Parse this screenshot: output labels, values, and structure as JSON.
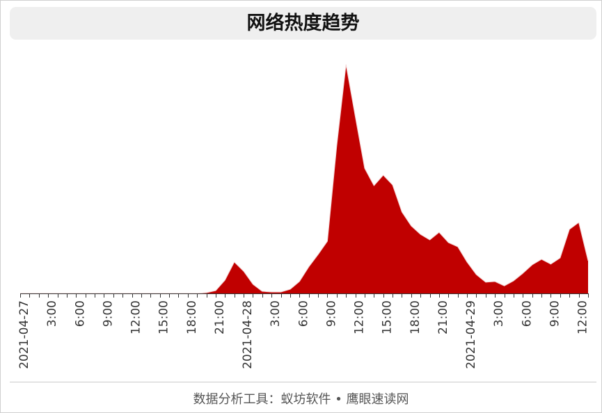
{
  "chart_data": {
    "type": "area",
    "title": "网络热度趋势",
    "x": [
      "2021-04-27 00:00",
      "2021-04-27 01:00",
      "2021-04-27 02:00",
      "2021-04-27 03:00",
      "2021-04-27 04:00",
      "2021-04-27 05:00",
      "2021-04-27 06:00",
      "2021-04-27 07:00",
      "2021-04-27 08:00",
      "2021-04-27 09:00",
      "2021-04-27 10:00",
      "2021-04-27 11:00",
      "2021-04-27 12:00",
      "2021-04-27 13:00",
      "2021-04-27 14:00",
      "2021-04-27 15:00",
      "2021-04-27 16:00",
      "2021-04-27 17:00",
      "2021-04-27 18:00",
      "2021-04-27 19:00",
      "2021-04-27 20:00",
      "2021-04-27 21:00",
      "2021-04-27 22:00",
      "2021-04-27 23:00",
      "2021-04-28 00:00",
      "2021-04-28 01:00",
      "2021-04-28 02:00",
      "2021-04-28 03:00",
      "2021-04-28 04:00",
      "2021-04-28 05:00",
      "2021-04-28 06:00",
      "2021-04-28 07:00",
      "2021-04-28 08:00",
      "2021-04-28 09:00",
      "2021-04-28 10:00",
      "2021-04-28 11:00",
      "2021-04-28 12:00",
      "2021-04-28 13:00",
      "2021-04-28 14:00",
      "2021-04-28 15:00",
      "2021-04-28 16:00",
      "2021-04-28 17:00",
      "2021-04-28 18:00",
      "2021-04-28 19:00",
      "2021-04-28 20:00",
      "2021-04-28 21:00",
      "2021-04-28 22:00",
      "2021-04-28 23:00",
      "2021-04-29 00:00",
      "2021-04-29 01:00",
      "2021-04-29 02:00",
      "2021-04-29 03:00",
      "2021-04-29 04:00",
      "2021-04-29 05:00",
      "2021-04-29 06:00",
      "2021-04-29 07:00",
      "2021-04-29 08:00",
      "2021-04-29 09:00",
      "2021-04-29 10:00",
      "2021-04-29 11:00",
      "2021-04-29 12:00",
      "2021-04-29 13:00"
    ],
    "series": [
      {
        "values": [
          0,
          0,
          0,
          0,
          0,
          0,
          0,
          0,
          0,
          0,
          0,
          0,
          0,
          0,
          0,
          0,
          0,
          0,
          0,
          0,
          0.3,
          1.2,
          5.8,
          13.7,
          9.7,
          4.0,
          0.9,
          0.6,
          0.6,
          1.8,
          5.2,
          11.6,
          17.0,
          22.8,
          64.4,
          100,
          77.2,
          54.7,
          47.1,
          51.7,
          47.4,
          35.6,
          29.5,
          25.8,
          23.4,
          26.7,
          22.2,
          20.4,
          13.7,
          8.2,
          4.9,
          5.2,
          3.3,
          5.5,
          8.8,
          12.5,
          14.9,
          12.8,
          15.5,
          28.0,
          31.0,
          14.3
        ]
      }
    ],
    "ylim": [
      0,
      100
    ],
    "x_ticks": [
      {
        "x": "2021-04-27 00:00",
        "label": "2021-04-27"
      },
      {
        "x": "2021-04-27 03:00",
        "label": "3:00"
      },
      {
        "x": "2021-04-27 06:00",
        "label": "6:00"
      },
      {
        "x": "2021-04-27 09:00",
        "label": "9:00"
      },
      {
        "x": "2021-04-27 12:00",
        "label": "12:00"
      },
      {
        "x": "2021-04-27 15:00",
        "label": "15:00"
      },
      {
        "x": "2021-04-27 18:00",
        "label": "18:00"
      },
      {
        "x": "2021-04-27 21:00",
        "label": "21:00"
      },
      {
        "x": "2021-04-28 00:00",
        "label": "2021-04-28"
      },
      {
        "x": "2021-04-28 03:00",
        "label": "3:00"
      },
      {
        "x": "2021-04-28 06:00",
        "label": "6:00"
      },
      {
        "x": "2021-04-28 09:00",
        "label": "9:00"
      },
      {
        "x": "2021-04-28 12:00",
        "label": "12:00"
      },
      {
        "x": "2021-04-28 15:00",
        "label": "15:00"
      },
      {
        "x": "2021-04-28 18:00",
        "label": "18:00"
      },
      {
        "x": "2021-04-28 21:00",
        "label": "21:00"
      },
      {
        "x": "2021-04-29 00:00",
        "label": "2021-04-29"
      },
      {
        "x": "2021-04-29 03:00",
        "label": "3:00"
      },
      {
        "x": "2021-04-29 06:00",
        "label": "6:00"
      },
      {
        "x": "2021-04-29 09:00",
        "label": "9:00"
      },
      {
        "x": "2021-04-29 12:00",
        "label": "12:00"
      }
    ],
    "grid": false,
    "legend": "none",
    "y_axis_shown": false
  },
  "colors": {
    "series_fill": "#c00000",
    "series_line": "#f3d3d3",
    "axis": "#333333"
  },
  "footer": {
    "text": "数据分析工具：蚁坊软件 • 鹰眼速读网"
  }
}
